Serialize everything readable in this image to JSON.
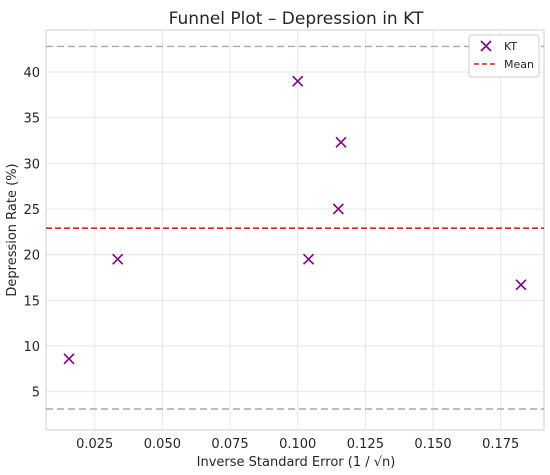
{
  "chart_data": {
    "type": "scatter",
    "title": "Funnel Plot – Depression in KT",
    "xlabel": "Inverse Standard Error (1 / √n)",
    "ylabel": "Depression Rate (%)",
    "xlim": [
      0.007,
      0.191
    ],
    "ylim": [
      0.8,
      44.6
    ],
    "grid": true,
    "legend_position": "top-right",
    "x_ticks": [
      {
        "value": 0.025,
        "label": "0.025"
      },
      {
        "value": 0.05,
        "label": "0.050"
      },
      {
        "value": 0.075,
        "label": "0.075"
      },
      {
        "value": 0.1,
        "label": "0.100"
      },
      {
        "value": 0.125,
        "label": "0.125"
      },
      {
        "value": 0.15,
        "label": "0.150"
      },
      {
        "value": 0.175,
        "label": "0.175"
      }
    ],
    "y_ticks": [
      {
        "value": 5,
        "label": "5"
      },
      {
        "value": 10,
        "label": "10"
      },
      {
        "value": 15,
        "label": "15"
      },
      {
        "value": 20,
        "label": "20"
      },
      {
        "value": 25,
        "label": "25"
      },
      {
        "value": 30,
        "label": "30"
      },
      {
        "value": 35,
        "label": "35"
      },
      {
        "value": 40,
        "label": "40"
      }
    ],
    "series": [
      {
        "name": "KT",
        "marker": "x",
        "color": "#800080",
        "points": [
          {
            "x": 0.0155,
            "y": 8.6
          },
          {
            "x": 0.0335,
            "y": 19.5
          },
          {
            "x": 0.1,
            "y": 39.0
          },
          {
            "x": 0.104,
            "y": 19.5
          },
          {
            "x": 0.115,
            "y": 25.0
          },
          {
            "x": 0.116,
            "y": 32.3
          },
          {
            "x": 0.1825,
            "y": 16.7
          }
        ]
      }
    ],
    "reference_lines": [
      {
        "name": "Mean",
        "y": 22.9,
        "color": "#d62728",
        "style": "dashed",
        "in_legend": true
      },
      {
        "y": 42.8,
        "color": "#a9a9a9",
        "style": "dashed",
        "in_legend": false
      },
      {
        "y": 3.1,
        "color": "#a9a9a9",
        "style": "dashed",
        "in_legend": false
      }
    ]
  }
}
